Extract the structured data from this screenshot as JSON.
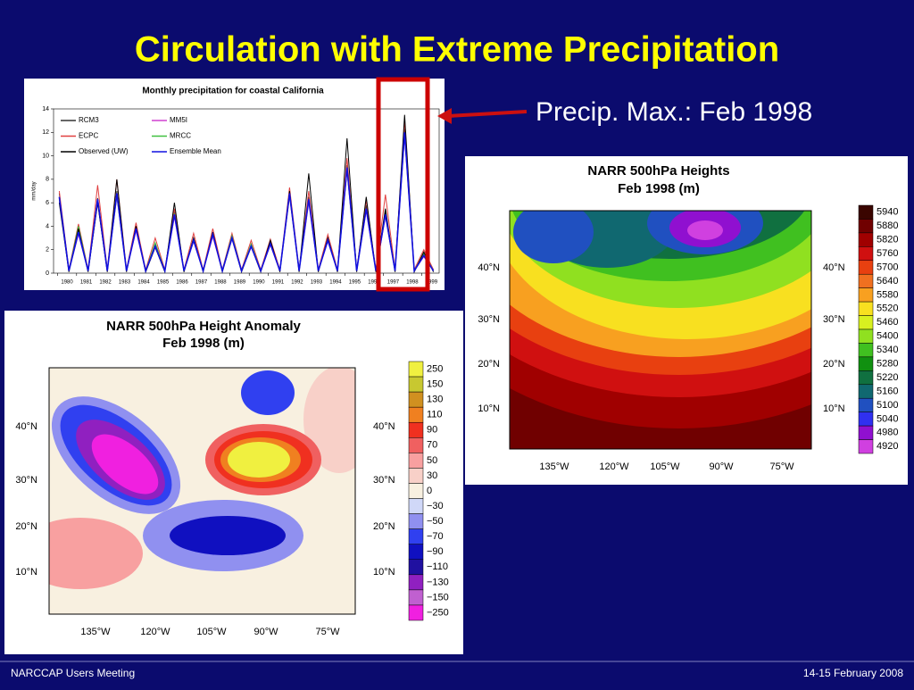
{
  "title": "Circulation with Extreme Precipitation",
  "callout": "Precip. Max.:  Feb 1998",
  "footer": {
    "left": "NARCCAP Users Meeting",
    "right": "14-15 February 2008"
  },
  "chart_data": {
    "type": "line",
    "title": "Monthly precipitation for coastal California",
    "y_label": "mm/day",
    "x": [
      1980.1,
      1980.6,
      1981.1,
      1981.6,
      1982.1,
      1982.6,
      1983.1,
      1983.6,
      1984.1,
      1984.6,
      1985.1,
      1985.6,
      1986.1,
      1986.6,
      1987.1,
      1987.6,
      1988.1,
      1988.6,
      1989.1,
      1989.6,
      1990.1,
      1990.6,
      1991.1,
      1991.6,
      1992.1,
      1992.6,
      1993.1,
      1993.6,
      1994.1,
      1994.6,
      1995.1,
      1995.6,
      1996.1,
      1996.6,
      1997.1,
      1997.6,
      1998.1,
      1998.6,
      1999.1,
      1999.6
    ],
    "series": [
      {
        "name": "RCM3",
        "color": "#333333",
        "values": [
          6.8,
          0.2,
          3.6,
          0.2,
          6.4,
          0.2,
          7,
          0.2,
          4,
          0.2,
          2.5,
          0.2,
          5.2,
          0.2,
          3,
          0.2,
          3.4,
          0.2,
          3.1,
          0.2,
          2.4,
          0.2,
          2.6,
          0.2,
          7,
          0.2,
          6.5,
          0.2,
          3,
          0.2,
          9.2,
          0.2,
          5.8,
          0.2,
          5.2,
          0.2,
          12.3,
          0.2,
          1.6,
          0.2
        ]
      },
      {
        "name": "MM5I",
        "color": "#d040d0",
        "values": [
          6.2,
          0.2,
          3.3,
          0.2,
          6,
          0.2,
          6.5,
          0.2,
          3.6,
          0.2,
          2.2,
          0.2,
          4.8,
          0.2,
          2.7,
          0.2,
          3.1,
          0.2,
          2.9,
          0.2,
          2.2,
          0.2,
          2.4,
          0.2,
          6.5,
          0.2,
          6,
          0.2,
          2.7,
          0.2,
          8.7,
          0.2,
          5.3,
          0.2,
          4.8,
          0.2,
          11.6,
          0.2,
          1.4,
          0.2
        ]
      },
      {
        "name": "ECPC",
        "color": "#e04040",
        "values": [
          7,
          0.3,
          4.2,
          0.3,
          7.5,
          0.3,
          8,
          0.3,
          4.3,
          0.3,
          3,
          0.3,
          5.5,
          0.3,
          3.4,
          0.3,
          3.8,
          0.3,
          3.4,
          0.3,
          2.8,
          0.3,
          2.9,
          0.3,
          7.3,
          0.3,
          7,
          0.3,
          3.3,
          0.3,
          9.8,
          0.3,
          6.2,
          0.3,
          6.7,
          0.3,
          13,
          0.3,
          2,
          0.3
        ]
      },
      {
        "name": "MRCC",
        "color": "#40c040",
        "values": [
          6.3,
          0.2,
          4,
          0.2,
          6.1,
          0.2,
          6.6,
          0.2,
          3.9,
          0.2,
          2.6,
          0.2,
          5.1,
          0.2,
          2.9,
          0.2,
          3.3,
          0.2,
          3.2,
          0.2,
          2.5,
          0.2,
          2.6,
          0.2,
          6.6,
          0.2,
          6.2,
          0.2,
          2.9,
          0.2,
          8.8,
          0.2,
          5.5,
          0.2,
          4.9,
          0.2,
          11.8,
          0.2,
          1.7,
          0.2
        ]
      },
      {
        "name": "Observed (UW)",
        "color": "#000000",
        "values": [
          6,
          0.1,
          3.8,
          0.1,
          6,
          0.1,
          8,
          0.1,
          4,
          0.1,
          2.2,
          0.1,
          6,
          0.1,
          3,
          0.1,
          3.5,
          0.1,
          3,
          0.1,
          2.3,
          0.1,
          2.8,
          0.1,
          7,
          0.1,
          8.5,
          0.1,
          3,
          0.1,
          11.5,
          0.1,
          6.5,
          0.1,
          5.5,
          0.1,
          13.5,
          0.1,
          1.8,
          0.1
        ]
      },
      {
        "name": "Ensemble Mean",
        "color": "#1010e0",
        "values": [
          6.5,
          0.2,
          3.5,
          0.2,
          6.3,
          0.2,
          6.8,
          0.2,
          3.8,
          0.2,
          2.3,
          0.2,
          5,
          0.2,
          2.8,
          0.2,
          3.3,
          0.2,
          3,
          0.2,
          2.3,
          0.2,
          2.5,
          0.2,
          6.8,
          0.2,
          6.3,
          0.2,
          2.8,
          0.2,
          9,
          0.2,
          5.5,
          0.2,
          5,
          0.2,
          12,
          0.2,
          1.5,
          0.2
        ]
      }
    ],
    "xlim": [
      1979.8,
      1999.9
    ],
    "xticks": [
      1980,
      1981,
      1982,
      1983,
      1984,
      1985,
      1986,
      1987,
      1988,
      1989,
      1990,
      1991,
      1992,
      1993,
      1994,
      1995,
      1996,
      1997,
      1998,
      1999
    ],
    "ylim": [
      0,
      14
    ],
    "yticks": [
      0,
      2,
      4,
      6,
      8,
      10,
      12,
      14
    ]
  },
  "maps": [
    {
      "title": [
        "NARR 500hPa Heights",
        "Feb 1998 (m)"
      ],
      "lat_labels": [
        "40°N",
        "30°N",
        "20°N",
        "10°N"
      ],
      "lon_labels": [
        "135°W",
        "120°W",
        "105°W",
        "90°W",
        "75°W"
      ],
      "colorbar": [
        {
          "label": "5940",
          "color": "#3a0500"
        },
        {
          "label": "5880",
          "color": "#700000"
        },
        {
          "label": "5820",
          "color": "#a00000"
        },
        {
          "label": "5760",
          "color": "#d01010"
        },
        {
          "label": "5700",
          "color": "#e84010"
        },
        {
          "label": "5640",
          "color": "#f07020"
        },
        {
          "label": "5580",
          "color": "#f8a020"
        },
        {
          "label": "5520",
          "color": "#f8e020"
        },
        {
          "label": "5460",
          "color": "#d8f020"
        },
        {
          "label": "5400",
          "color": "#90e020"
        },
        {
          "label": "5340",
          "color": "#40c020"
        },
        {
          "label": "5280",
          "color": "#109010"
        },
        {
          "label": "5220",
          "color": "#107040"
        },
        {
          "label": "5160",
          "color": "#106870"
        },
        {
          "label": "5100",
          "color": "#2050c0"
        },
        {
          "label": "5040",
          "color": "#3030f0"
        },
        {
          "label": "4980",
          "color": "#9010d0"
        },
        {
          "label": "4920",
          "color": "#d040e0"
        }
      ]
    },
    {
      "title": [
        "NARR 500hPa Height Anomaly",
        "Feb 1998 (m)"
      ],
      "lat_labels": [
        "40°N",
        "30°N",
        "20°N",
        "10°N"
      ],
      "lon_labels": [
        "135°W",
        "120°W",
        "105°W",
        "90°W",
        "75°W"
      ],
      "colorbar": [
        {
          "label": "250",
          "color": "#f0f040"
        },
        {
          "label": "150",
          "color": "#c8c830"
        },
        {
          "label": "130",
          "color": "#d09020"
        },
        {
          "label": "110",
          "color": "#f08020"
        },
        {
          "label": "90",
          "color": "#f03020"
        },
        {
          "label": "70",
          "color": "#f06060"
        },
        {
          "label": "50",
          "color": "#f8a0a0"
        },
        {
          "label": "30",
          "color": "#f8d0c8"
        },
        {
          "label": "0",
          "color": "#f8f0e0"
        },
        {
          "label": "−30",
          "color": "#d0d8f8"
        },
        {
          "label": "−50",
          "color": "#9090f0"
        },
        {
          "label": "−70",
          "color": "#3040f0"
        },
        {
          "label": "−90",
          "color": "#1010c0"
        },
        {
          "label": "−110",
          "color": "#2010a0"
        },
        {
          "label": "−130",
          "color": "#9020c0"
        },
        {
          "label": "−150",
          "color": "#c060d0"
        },
        {
          "label": "−250",
          "color": "#f020e0"
        }
      ]
    }
  ]
}
